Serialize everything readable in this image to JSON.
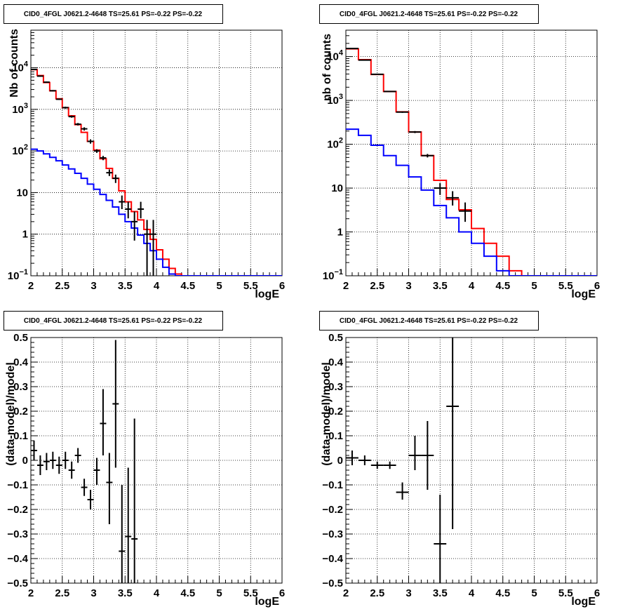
{
  "colors": {
    "data": "#000000",
    "total_model": "#ff0000",
    "source_model": "#0000ff",
    "grid": "#000000"
  },
  "chart_data": [
    {
      "type": "line",
      "title": "CID0_4FGL J0621.2-4648 TS=25.61 PS=-0.22 PS=-0.22",
      "xlabel": "logE",
      "ylabel": "Nb of counts",
      "log_y": true,
      "xlim": [
        2,
        6
      ],
      "ylim": [
        0.1,
        80000
      ],
      "grid": true,
      "xticks": [
        {
          "v": 2,
          "t": "2"
        },
        {
          "v": 2.5,
          "t": "2.5"
        },
        {
          "v": 3,
          "t": "3"
        },
        {
          "v": 3.5,
          "t": "3.5"
        },
        {
          "v": 4,
          "t": "4"
        },
        {
          "v": 4.5,
          "t": "4.5"
        },
        {
          "v": 5,
          "t": "5"
        },
        {
          "v": 5.5,
          "t": "5.5"
        },
        {
          "v": 6,
          "t": "6"
        }
      ],
      "yticks": [
        {
          "v": 0.1,
          "t": "10",
          "sup": "−1"
        },
        {
          "v": 1,
          "t": "1"
        },
        {
          "v": 10,
          "t": "10"
        },
        {
          "v": 100,
          "t": "10",
          "sup": "2"
        },
        {
          "v": 1000,
          "t": "10",
          "sup": "3"
        },
        {
          "v": 10000,
          "t": "10",
          "sup": "4"
        }
      ],
      "bin_edges": [
        2.0,
        2.1,
        2.2,
        2.3,
        2.4,
        2.5,
        2.6,
        2.7,
        2.8,
        2.9,
        3.0,
        3.1,
        3.2,
        3.3,
        3.4,
        3.5,
        3.6,
        3.7,
        3.8,
        3.9,
        4.0,
        4.1,
        4.2,
        4.3,
        4.4,
        4.5,
        4.6,
        4.7,
        4.8,
        4.9,
        5.0,
        5.1,
        5.2,
        5.3,
        5.4,
        5.5,
        5.6,
        5.7,
        5.8,
        5.9,
        6.0
      ],
      "series": [
        {
          "role": "total_model",
          "values": [
            9000,
            6500,
            4400,
            2800,
            1800,
            1100,
            700,
            430,
            280,
            170,
            105,
            65,
            38,
            22,
            11,
            6,
            3.5,
            2.2,
            1.3,
            0.75,
            0.42,
            0.25,
            0.15,
            0.11,
            0.1,
            0.1,
            0.1,
            0.1,
            0.1,
            0.1,
            0.1,
            0.1,
            0.1,
            0.1,
            0.1,
            0.1,
            0.1,
            0.1,
            0.1,
            0.1
          ]
        },
        {
          "role": "source_model",
          "values": [
            110,
            100,
            85,
            70,
            58,
            46,
            37,
            29,
            22,
            16,
            12,
            9,
            6.5,
            4.5,
            3,
            2,
            1.4,
            0.95,
            0.6,
            0.4,
            0.25,
            0.16,
            0.11,
            0.1,
            0.1,
            0.1,
            0.1,
            0.1,
            0.1,
            0.1,
            0.1,
            0.1,
            0.1,
            0.1,
            0.1,
            0.1,
            0.1,
            0.1,
            0.1,
            0.1
          ]
        }
      ],
      "points": [
        {
          "x": 2.05,
          "y": 9100,
          "lo": 8900,
          "hi": 9300
        },
        {
          "x": 2.15,
          "y": 6300,
          "lo": 6150,
          "hi": 6450
        },
        {
          "x": 2.25,
          "y": 4500,
          "lo": 4350,
          "hi": 4650
        },
        {
          "x": 2.35,
          "y": 2800,
          "lo": 2700,
          "hi": 2900
        },
        {
          "x": 2.45,
          "y": 1750,
          "lo": 1680,
          "hi": 1820
        },
        {
          "x": 2.55,
          "y": 1100,
          "lo": 1040,
          "hi": 1160
        },
        {
          "x": 2.65,
          "y": 670,
          "lo": 630,
          "hi": 710
        },
        {
          "x": 2.75,
          "y": 440,
          "lo": 410,
          "hi": 470
        },
        {
          "x": 2.85,
          "y": 340,
          "lo": 310,
          "hi": 370
        },
        {
          "x": 2.95,
          "y": 170,
          "lo": 150,
          "hi": 190
        },
        {
          "x": 3.05,
          "y": 100,
          "lo": 90,
          "hi": 110
        },
        {
          "x": 3.15,
          "y": 68,
          "lo": 60,
          "hi": 76
        },
        {
          "x": 3.25,
          "y": 30,
          "lo": 25,
          "hi": 36
        },
        {
          "x": 3.35,
          "y": 22,
          "lo": 17,
          "hi": 27
        },
        {
          "x": 3.45,
          "y": 6,
          "lo": 4,
          "hi": 8.5
        },
        {
          "x": 3.55,
          "y": 4,
          "lo": 2.4,
          "hi": 6
        },
        {
          "x": 3.65,
          "y": 2,
          "lo": 0.7,
          "hi": 3.5
        },
        {
          "x": 3.75,
          "y": 4,
          "lo": 2.4,
          "hi": 6
        },
        {
          "x": 3.85,
          "y": 1,
          "lo": 0.1,
          "hi": 2.2
        },
        {
          "x": 3.95,
          "y": 1,
          "lo": 0.1,
          "hi": 2.2
        }
      ]
    },
    {
      "type": "line",
      "title": "CID0_4FGL J0621.2-4648 TS=25.61 PS=-0.22 PS=-0.22",
      "xlabel": "logE",
      "ylabel": "nb of counts",
      "log_y": true,
      "xlim": [
        2,
        6
      ],
      "ylim": [
        0.1,
        40000
      ],
      "grid": true,
      "xticks": [
        {
          "v": 2,
          "t": "2"
        },
        {
          "v": 2.5,
          "t": "2.5"
        },
        {
          "v": 3,
          "t": "3"
        },
        {
          "v": 3.5,
          "t": "3.5"
        },
        {
          "v": 4,
          "t": "4"
        },
        {
          "v": 4.5,
          "t": "4.5"
        },
        {
          "v": 5,
          "t": "5"
        },
        {
          "v": 5.5,
          "t": "5.5"
        },
        {
          "v": 6,
          "t": "6"
        }
      ],
      "yticks": [
        {
          "v": 0.1,
          "t": "10",
          "sup": "−1"
        },
        {
          "v": 1,
          "t": "1"
        },
        {
          "v": 10,
          "t": "10"
        },
        {
          "v": 100,
          "t": "10",
          "sup": "2"
        },
        {
          "v": 1000,
          "t": "10",
          "sup": "3"
        },
        {
          "v": 10000,
          "t": "10",
          "sup": "4"
        }
      ],
      "bin_edges": [
        2.0,
        2.2,
        2.4,
        2.6,
        2.8,
        3.0,
        3.2,
        3.4,
        3.6,
        3.8,
        4.0,
        4.2,
        4.4,
        4.6,
        4.8,
        5.0,
        5.2,
        5.4,
        5.6,
        5.8,
        6.0
      ],
      "series": [
        {
          "role": "total_model",
          "values": [
            15000,
            8500,
            3900,
            1600,
            550,
            190,
            55,
            15,
            5.5,
            3.2,
            1.2,
            0.55,
            0.28,
            0.13,
            0.1,
            0.1,
            0.1,
            0.1,
            0.1,
            0.1
          ]
        },
        {
          "role": "source_model",
          "values": [
            220,
            160,
            95,
            55,
            33,
            18,
            9,
            4,
            2.1,
            1,
            0.55,
            0.28,
            0.13,
            0.1,
            0.1,
            0.1,
            0.1,
            0.1,
            0.1,
            0.1
          ]
        }
      ],
      "points": [
        {
          "x": 2.1,
          "y": 15300,
          "lo": 15100,
          "hi": 15500
        },
        {
          "x": 2.3,
          "y": 8300,
          "lo": 8150,
          "hi": 8450
        },
        {
          "x": 2.5,
          "y": 3950,
          "lo": 3880,
          "hi": 4020
        },
        {
          "x": 2.7,
          "y": 1600,
          "lo": 1560,
          "hi": 1640
        },
        {
          "x": 2.9,
          "y": 540,
          "lo": 520,
          "hi": 560
        },
        {
          "x": 3.1,
          "y": 190,
          "lo": 180,
          "hi": 200
        },
        {
          "x": 3.3,
          "y": 55,
          "lo": 50,
          "hi": 60
        },
        {
          "x": 3.5,
          "y": 10,
          "lo": 7,
          "hi": 13
        },
        {
          "x": 3.7,
          "y": 6,
          "lo": 4,
          "hi": 8.5
        },
        {
          "x": 3.9,
          "y": 3,
          "lo": 1.7,
          "hi": 4.7
        }
      ]
    },
    {
      "type": "scatter",
      "title": "CID0_4FGL J0621.2-4648 TS=25.61 PS=-0.22 PS=-0.22",
      "xlabel": "logE",
      "ylabel": "(data-model)/model",
      "log_y": false,
      "xlim": [
        2,
        6
      ],
      "ylim": [
        -0.5,
        0.5
      ],
      "grid": true,
      "xticks": [
        {
          "v": 2,
          "t": "2"
        },
        {
          "v": 2.5,
          "t": "2.5"
        },
        {
          "v": 3,
          "t": "3"
        },
        {
          "v": 3.5,
          "t": "3.5"
        },
        {
          "v": 4,
          "t": "4"
        },
        {
          "v": 4.5,
          "t": "4.5"
        },
        {
          "v": 5,
          "t": "5"
        },
        {
          "v": 5.5,
          "t": "5.5"
        },
        {
          "v": 6,
          "t": "6"
        }
      ],
      "yticks": [
        {
          "v": -0.5,
          "t": "−0.5"
        },
        {
          "v": -0.4,
          "t": "−0.4"
        },
        {
          "v": -0.3,
          "t": "−0.3"
        },
        {
          "v": -0.2,
          "t": "−0.2"
        },
        {
          "v": -0.1,
          "t": "−0.1"
        },
        {
          "v": 0,
          "t": "0"
        },
        {
          "v": 0.1,
          "t": "0.1"
        },
        {
          "v": 0.2,
          "t": "0.2"
        },
        {
          "v": 0.3,
          "t": "0.3"
        },
        {
          "v": 0.4,
          "t": "0.4"
        },
        {
          "v": 0.5,
          "t": "0.5"
        }
      ],
      "half_width": 0.05,
      "points": [
        {
          "x": 2.05,
          "y": 0.04,
          "lo": 0.0,
          "hi": 0.08
        },
        {
          "x": 2.15,
          "y": -0.02,
          "lo": -0.06,
          "hi": 0.02
        },
        {
          "x": 2.25,
          "y": -0.005,
          "lo": -0.04,
          "hi": 0.03
        },
        {
          "x": 2.35,
          "y": 0.0,
          "lo": -0.035,
          "hi": 0.035
        },
        {
          "x": 2.45,
          "y": -0.02,
          "lo": -0.055,
          "hi": 0.015
        },
        {
          "x": 2.55,
          "y": 0.0,
          "lo": -0.035,
          "hi": 0.035
        },
        {
          "x": 2.65,
          "y": -0.04,
          "lo": -0.075,
          "hi": -0.005
        },
        {
          "x": 2.75,
          "y": 0.02,
          "lo": -0.01,
          "hi": 0.05
        },
        {
          "x": 2.85,
          "y": -0.11,
          "lo": -0.145,
          "hi": -0.075
        },
        {
          "x": 2.95,
          "y": -0.16,
          "lo": -0.2,
          "hi": -0.12
        },
        {
          "x": 3.05,
          "y": -0.04,
          "lo": -0.1,
          "hi": 0.01
        },
        {
          "x": 3.15,
          "y": 0.15,
          "lo": 0.02,
          "hi": 0.29
        },
        {
          "x": 3.25,
          "y": -0.09,
          "lo": -0.26,
          "hi": 0.03
        },
        {
          "x": 3.35,
          "y": 0.23,
          "lo": -0.03,
          "hi": 0.49
        },
        {
          "x": 3.45,
          "y": -0.37,
          "lo": -0.6,
          "hi": -0.1
        },
        {
          "x": 3.55,
          "y": -0.31,
          "lo": -0.6,
          "hi": -0.03
        },
        {
          "x": 3.65,
          "y": -0.32,
          "lo": -0.6,
          "hi": 0.17
        }
      ]
    },
    {
      "type": "scatter",
      "title": "CID0_4FGL J0621.2-4648 TS=25.61 PS=-0.22 PS=-0.22",
      "xlabel": "logE",
      "ylabel": "(data-model)/model",
      "log_y": false,
      "xlim": [
        2,
        6
      ],
      "ylim": [
        -0.5,
        0.5
      ],
      "grid": true,
      "xticks": [
        {
          "v": 2,
          "t": "2"
        },
        {
          "v": 2.5,
          "t": "2.5"
        },
        {
          "v": 3,
          "t": "3"
        },
        {
          "v": 3.5,
          "t": "3.5"
        },
        {
          "v": 4,
          "t": "4"
        },
        {
          "v": 4.5,
          "t": "4.5"
        },
        {
          "v": 5,
          "t": "5"
        },
        {
          "v": 5.5,
          "t": "5.5"
        },
        {
          "v": 6,
          "t": "6"
        }
      ],
      "yticks": [
        {
          "v": -0.5,
          "t": "−0.5"
        },
        {
          "v": -0.4,
          "t": "−0.4"
        },
        {
          "v": -0.3,
          "t": "−0.3"
        },
        {
          "v": -0.2,
          "t": "−0.2"
        },
        {
          "v": -0.1,
          "t": "−0.1"
        },
        {
          "v": 0,
          "t": "0"
        },
        {
          "v": 0.1,
          "t": "0.1"
        },
        {
          "v": 0.2,
          "t": "0.2"
        },
        {
          "v": 0.3,
          "t": "0.3"
        },
        {
          "v": 0.4,
          "t": "0.4"
        },
        {
          "v": 0.5,
          "t": "0.5"
        }
      ],
      "half_width": 0.1,
      "points": [
        {
          "x": 2.1,
          "y": 0.01,
          "lo": -0.02,
          "hi": 0.04
        },
        {
          "x": 2.3,
          "y": 0.0,
          "lo": -0.02,
          "hi": 0.02
        },
        {
          "x": 2.5,
          "y": -0.02,
          "lo": -0.035,
          "hi": -0.005
        },
        {
          "x": 2.7,
          "y": -0.02,
          "lo": -0.035,
          "hi": -0.005
        },
        {
          "x": 2.9,
          "y": -0.13,
          "lo": -0.16,
          "hi": -0.09
        },
        {
          "x": 3.1,
          "y": 0.02,
          "lo": -0.04,
          "hi": 0.1
        },
        {
          "x": 3.3,
          "y": 0.02,
          "lo": -0.12,
          "hi": 0.16
        },
        {
          "x": 3.5,
          "y": -0.34,
          "lo": -0.6,
          "hi": -0.14
        },
        {
          "x": 3.7,
          "y": 0.22,
          "lo": -0.28,
          "hi": 0.6
        }
      ]
    }
  ]
}
